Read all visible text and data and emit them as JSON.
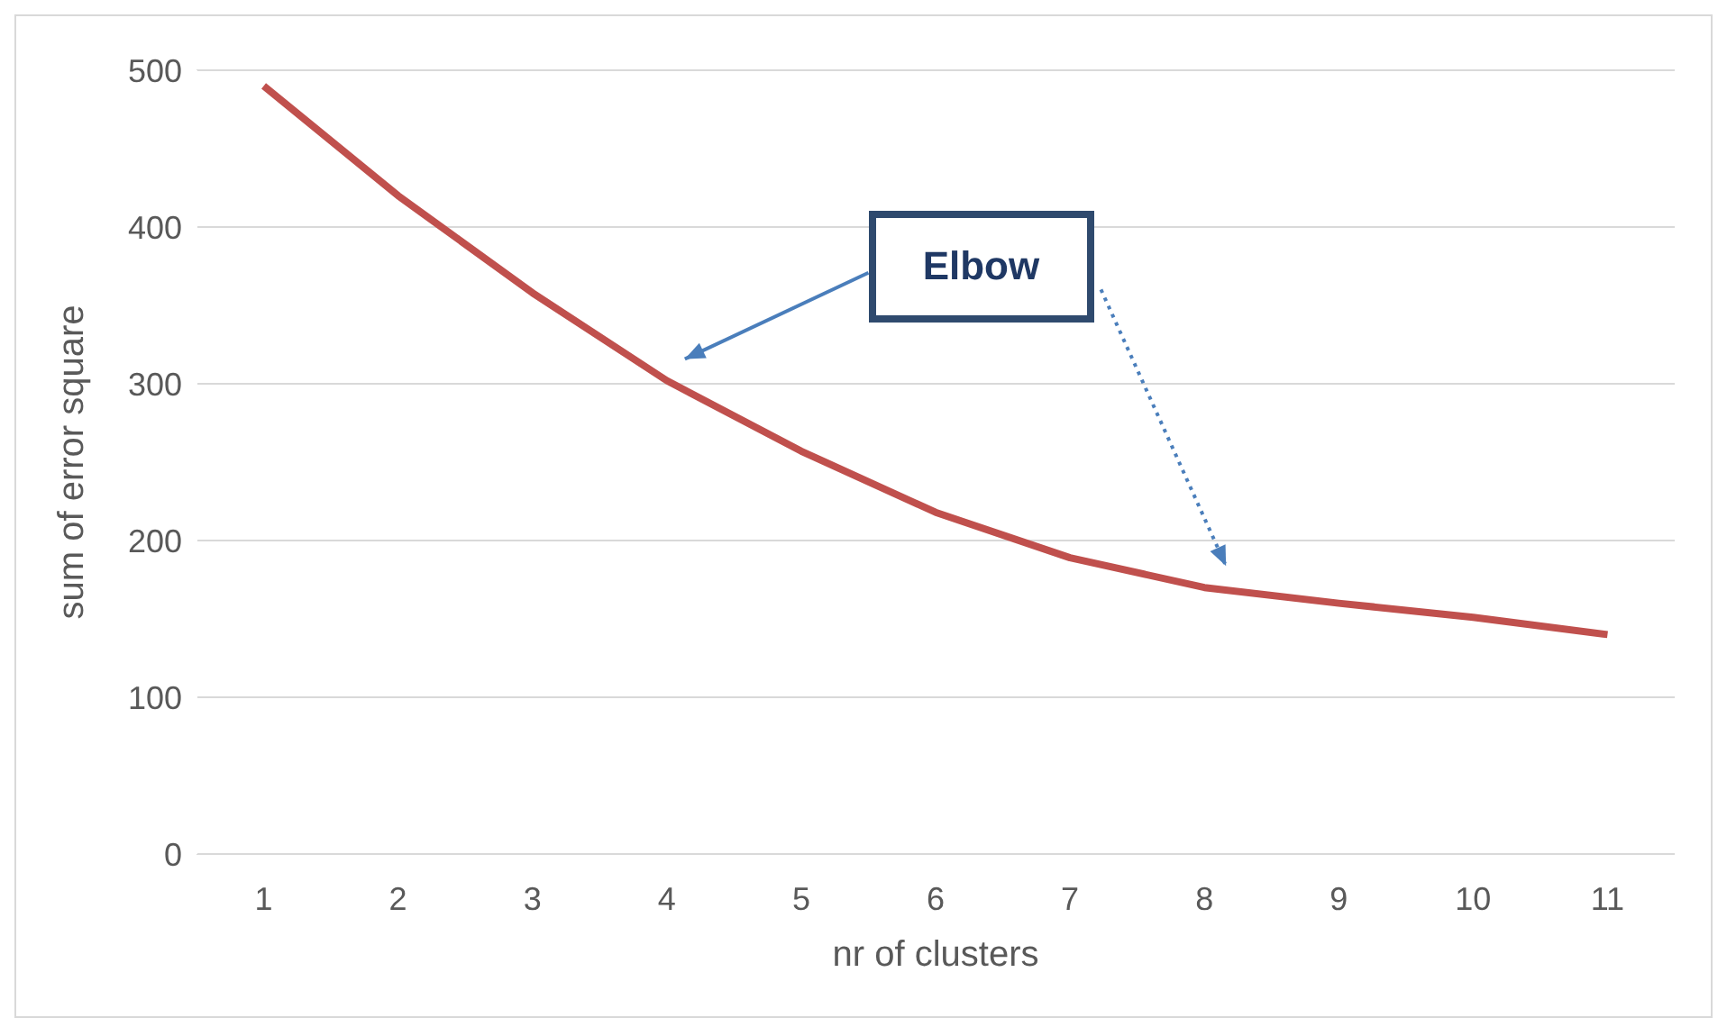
{
  "chart_data": {
    "type": "line",
    "xlabel": "nr of clusters",
    "ylabel": "sum of error square",
    "categories": [
      "1",
      "2",
      "3",
      "4",
      "5",
      "6",
      "7",
      "8",
      "9",
      "10",
      "11"
    ],
    "series": [
      {
        "color": "#c0504d",
        "values": [
          490,
          420,
          358,
          302,
          257,
          218,
          189,
          170,
          160,
          151,
          140
        ]
      }
    ],
    "ylim": [
      0,
      500
    ],
    "yticks": [
      0,
      100,
      200,
      300,
      400,
      500
    ],
    "grid": "y",
    "marker": "none",
    "line_style": "solid",
    "annotations": [
      "Elbow"
    ]
  }
}
